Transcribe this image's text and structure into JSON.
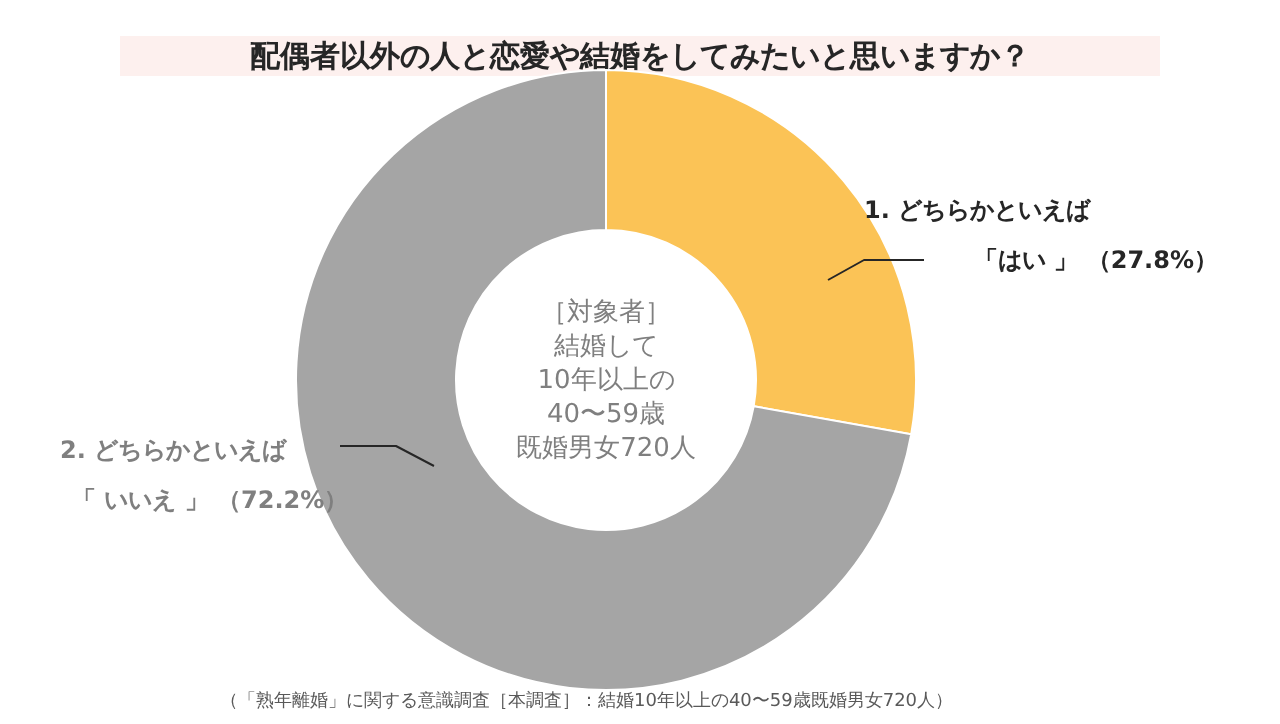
{
  "chart_data": {
    "type": "donut",
    "title": "配偶者以外の人と恋愛や結婚をしてみたいと思いますか？",
    "categories": [
      "1. どちらかといえば「はい 」",
      "2. どちらかといえば「 いいえ 」"
    ],
    "values": [
      27.8,
      72.2
    ],
    "value_labels": [
      "（27.8%）",
      "（72.2%）"
    ],
    "colors": [
      "#fbc356",
      "#a5a5a5"
    ],
    "annotations": [
      "［対象者］",
      "結婚して",
      "10年以上の",
      "40〜59歳",
      "既婚男女720人",
      "（「熟年離婚」に関する意識調査［本調査］：結婚10年以上の40〜59歳既婚男女720人）"
    ]
  }
}
